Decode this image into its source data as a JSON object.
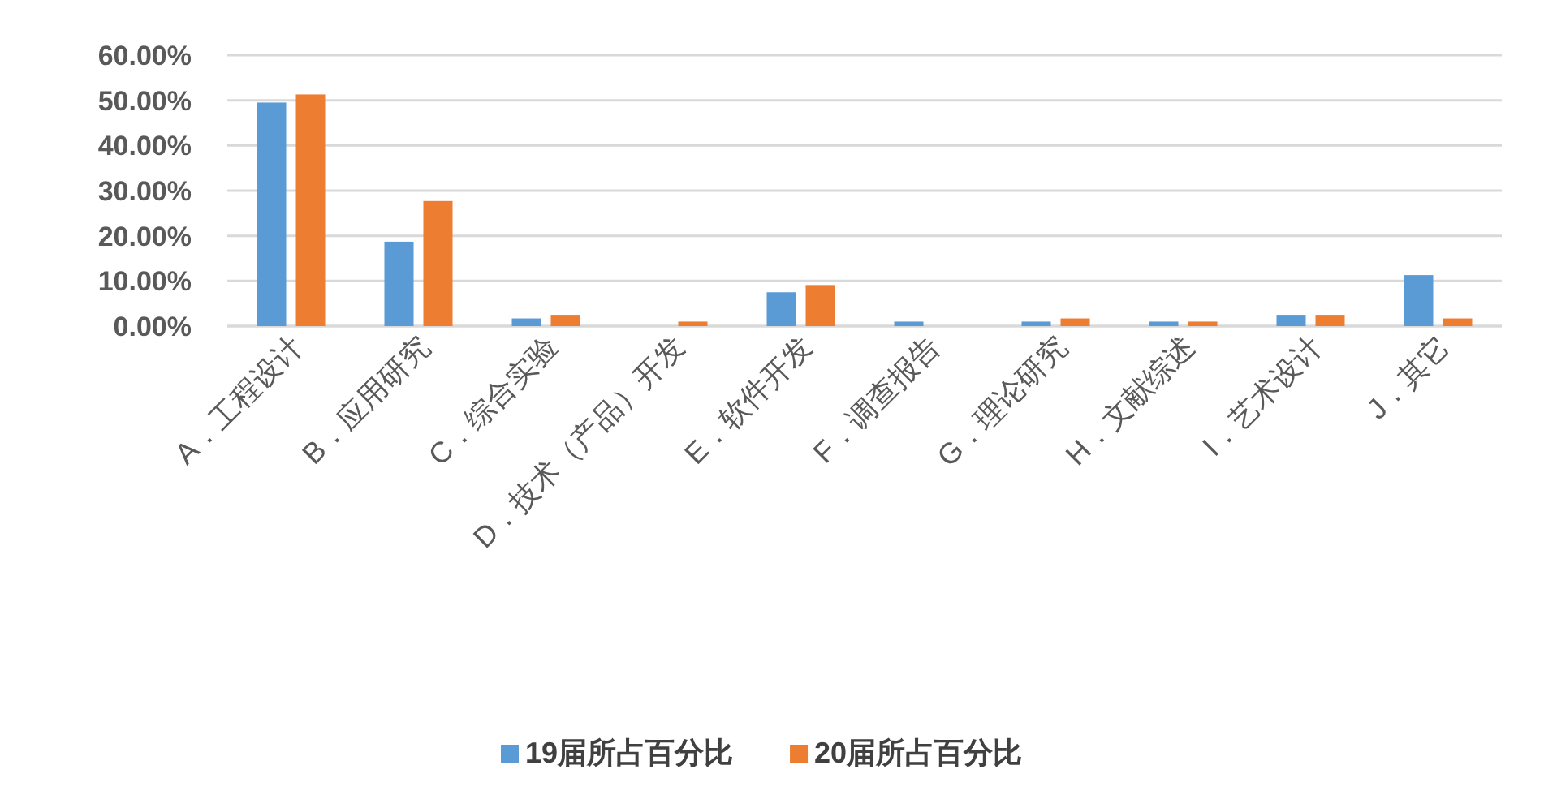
{
  "chart_data": {
    "type": "bar",
    "categories": [
      "A．工程设计",
      "B．应用研究",
      "C．综合实验",
      "D．技术（产品）开发",
      "E．软件开发",
      "F．调查报告",
      "G．理论研究",
      "H．文献综述",
      "I．艺术设计",
      "J．其它"
    ],
    "series": [
      {
        "name": "19届所占百分比",
        "color": "#5b9bd5",
        "values": [
          49.5,
          18.7,
          1.7,
          0,
          7.5,
          1.0,
          1.0,
          1.0,
          2.5,
          11.3
        ]
      },
      {
        "name": "20届所占百分比",
        "color": "#ed7d31",
        "values": [
          51.3,
          27.7,
          2.5,
          1.0,
          9.1,
          0,
          1.7,
          1.0,
          2.5,
          1.7
        ]
      }
    ],
    "ylim": [
      0,
      60
    ],
    "yticks": [
      {
        "value": 0,
        "label": "0.00%"
      },
      {
        "value": 10,
        "label": "10.00%"
      },
      {
        "value": 20,
        "label": "20.00%"
      },
      {
        "value": 30,
        "label": "30.00%"
      },
      {
        "value": 40,
        "label": "40.00%"
      },
      {
        "value": 50,
        "label": "50.00%"
      },
      {
        "value": 60,
        "label": "60.00%"
      }
    ],
    "grid": "y",
    "legend": "bottom"
  }
}
